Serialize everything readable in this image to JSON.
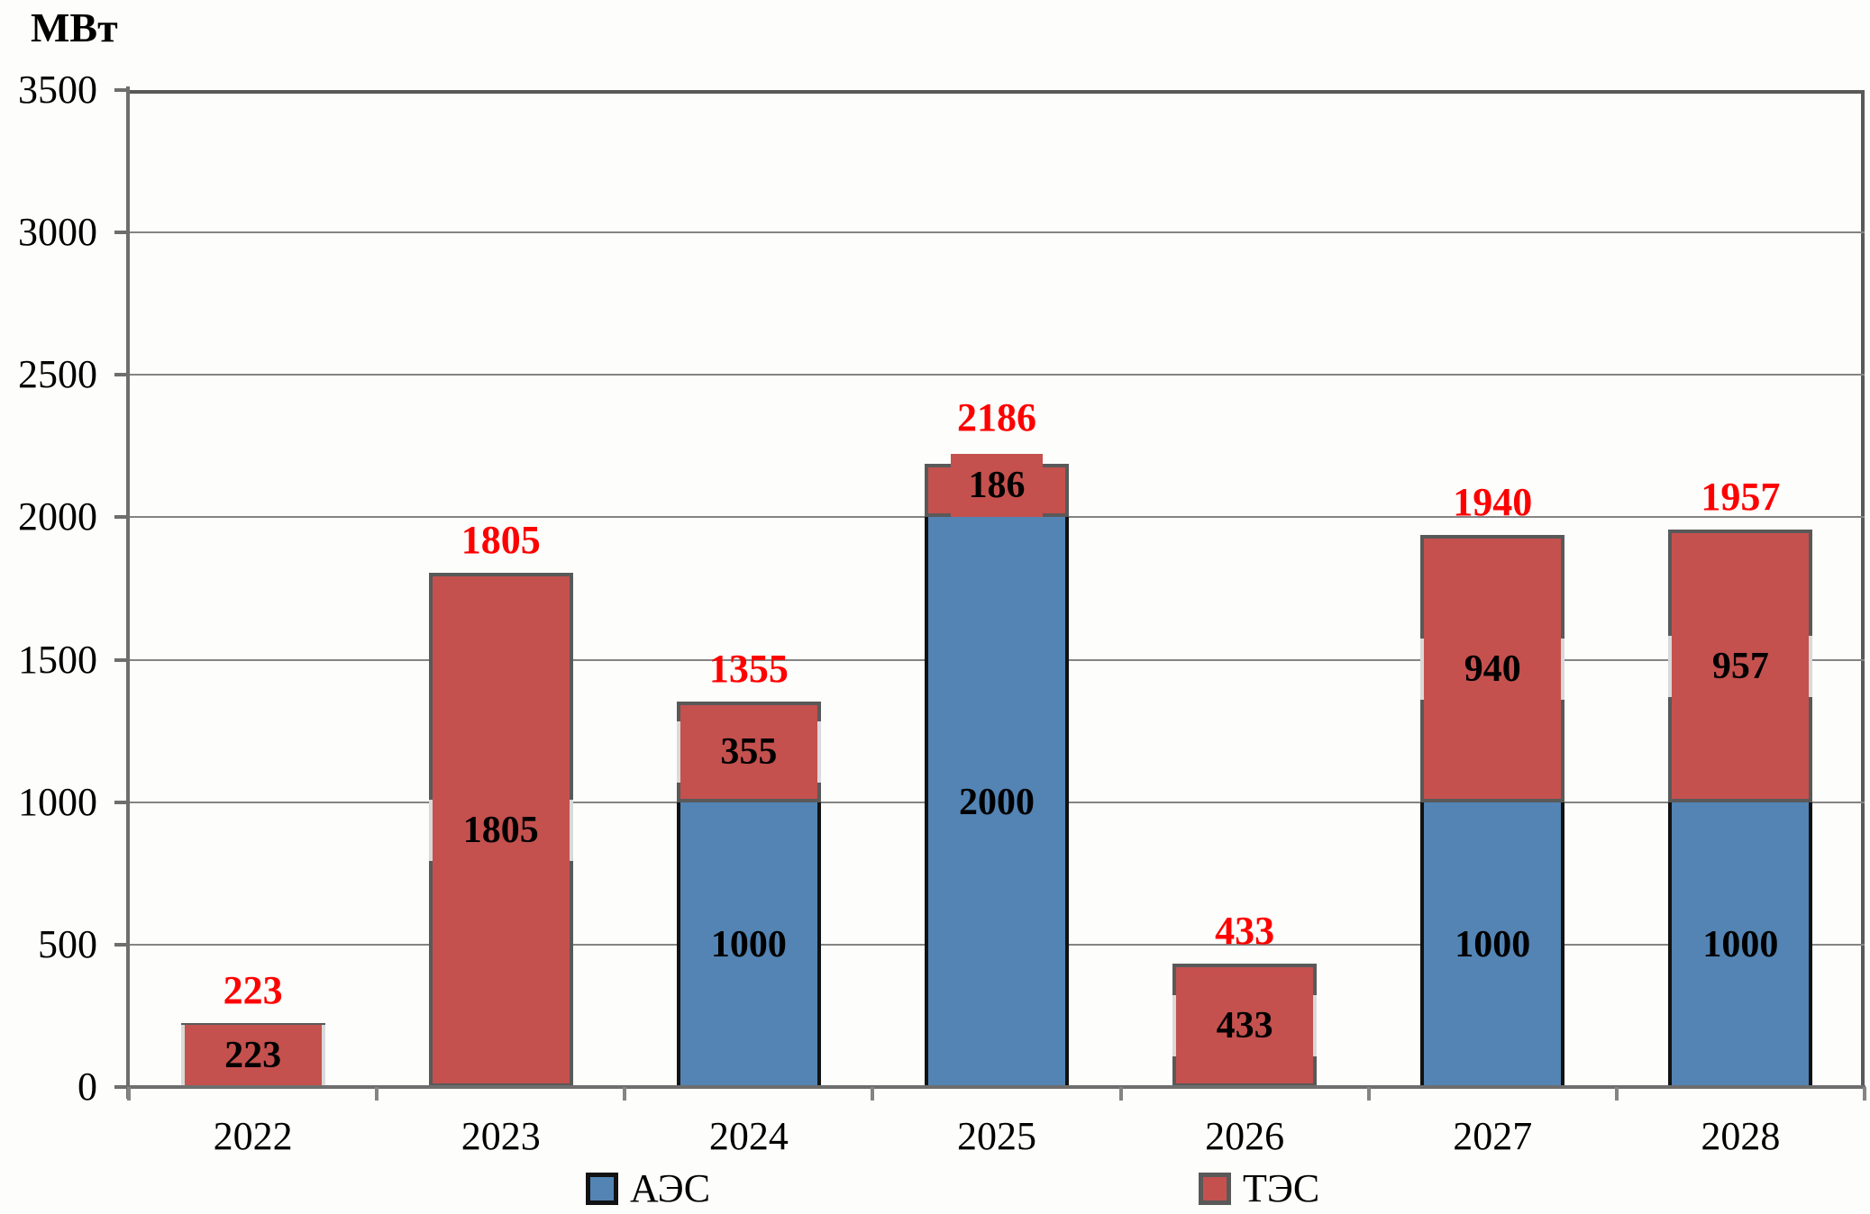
{
  "chart_data": {
    "type": "bar",
    "stacked": true,
    "title": "",
    "ylabel": "МВт",
    "xlabel": "",
    "categories": [
      "2022",
      "2023",
      "2024",
      "2025",
      "2026",
      "2027",
      "2028"
    ],
    "series": [
      {
        "name": "АЭС",
        "color": "#5384B3",
        "border_color": "#121212",
        "values": [
          0,
          0,
          1000,
          2000,
          0,
          1000,
          1000
        ]
      },
      {
        "name": "ТЭС",
        "color": "#C4514E",
        "border_color": "#595959",
        "values": [
          223,
          1805,
          355,
          186,
          433,
          940,
          957
        ]
      }
    ],
    "totals": [
      223,
      1805,
      1355,
      2186,
      433,
      1940,
      1957
    ],
    "segment_label_color": "#000000",
    "total_label_color": "#FF0000",
    "ylim": [
      0,
      3500
    ],
    "ytick_interval": 500,
    "yticks": [
      "0",
      "500",
      "1000",
      "1500",
      "2000",
      "2500",
      "3000",
      "3500"
    ],
    "grid": true,
    "legend_position": "bottom"
  }
}
